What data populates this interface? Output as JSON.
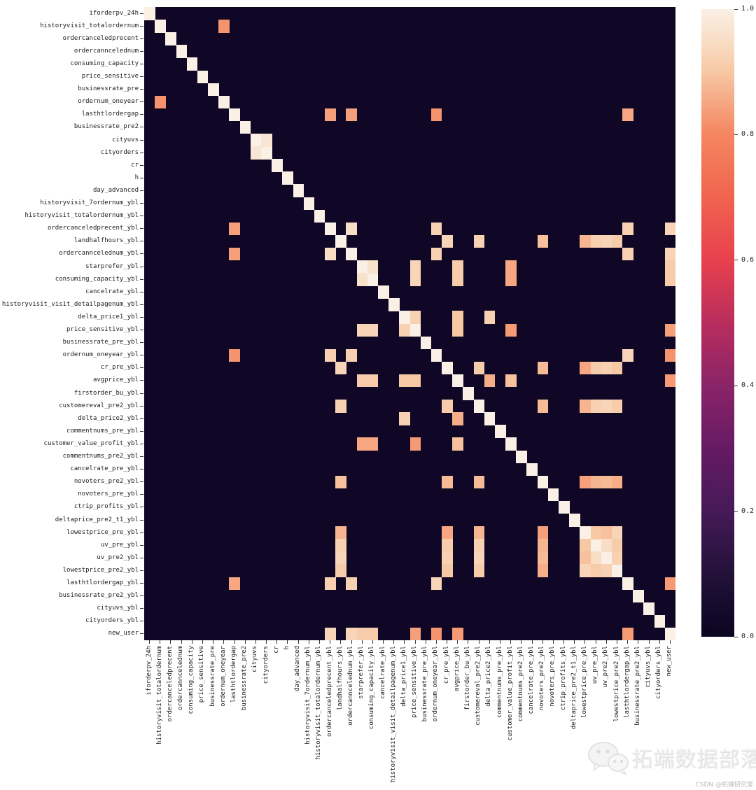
{
  "chart_data": {
    "type": "heatmap",
    "title": "",
    "variables": [
      "iforderpv_24h",
      "historyvisit_totalordernum",
      "ordercanceledprecent",
      "ordercanncelednum",
      "consuming_capacity",
      "price_sensitive",
      "businessrate_pre",
      "ordernum_oneyear",
      "lasthtlordergap",
      "businessrate_pre2",
      "cityuvs",
      "cityorders",
      "cr",
      "h",
      "day_advanced",
      "historyvisit_7ordernum_ybl",
      "historyvisit_totalordernum_ybl",
      "ordercanceledprecent_ybl",
      "landhalfhours_ybl",
      "ordercanncelednum_ybl",
      "starprefer_ybl",
      "consuming_capacity_ybl",
      "cancelrate_ybl",
      "historyvisit_visit_detailpagenum_ybl",
      "delta_price1_ybl",
      "price_sensitive_ybl",
      "businessrate_pre_ybl",
      "ordernum_oneyear_ybl",
      "cr_pre_ybl",
      "avgprice_ybl",
      "firstorder_bu_ybl",
      "customereval_pre2_ybl",
      "delta_price2_ybl",
      "commentnums_pre_ybl",
      "customer_value_profit_ybl",
      "commentnums_pre2_ybl",
      "cancelrate_pre_ybl",
      "novoters_pre2_ybl",
      "novoters_pre_ybl",
      "ctrip_profits_ybl",
      "deltaprice_pre2_t1_ybl",
      "lowestprice_pre_ybl",
      "uv_pre_ybl",
      "uv_pre2_ybl",
      "lowestprice_pre2_ybl",
      "lasthtlordergap_ybl",
      "businessrate_pre2_ybl",
      "cityuvs_ybl",
      "cityorders_ybl",
      "new_user"
    ],
    "vmin": 0.0,
    "vmax": 1.0,
    "diagonal_value": 1.0,
    "background_value": 0.02,
    "high_cells": [
      [
        2,
        8,
        0.82
      ],
      [
        9,
        18,
        0.84
      ],
      [
        9,
        20,
        0.84
      ],
      [
        9,
        28,
        0.82
      ],
      [
        9,
        46,
        0.85
      ],
      [
        11,
        12,
        0.97
      ],
      [
        18,
        20,
        0.95
      ],
      [
        18,
        28,
        0.92
      ],
      [
        18,
        46,
        0.92
      ],
      [
        18,
        50,
        0.93
      ],
      [
        20,
        28,
        0.92
      ],
      [
        20,
        46,
        0.92
      ],
      [
        20,
        50,
        0.93
      ],
      [
        28,
        46,
        0.93
      ],
      [
        28,
        50,
        0.82
      ],
      [
        46,
        50,
        0.83
      ],
      [
        21,
        22,
        0.96
      ],
      [
        21,
        26,
        0.93
      ],
      [
        22,
        26,
        0.93
      ],
      [
        21,
        30,
        0.91
      ],
      [
        22,
        30,
        0.91
      ],
      [
        21,
        35,
        0.85
      ],
      [
        22,
        35,
        0.85
      ],
      [
        21,
        50,
        0.91
      ],
      [
        22,
        50,
        0.91
      ],
      [
        25,
        26,
        0.92
      ],
      [
        25,
        30,
        0.9
      ],
      [
        25,
        33,
        0.92
      ],
      [
        26,
        30,
        0.9
      ],
      [
        26,
        35,
        0.83
      ],
      [
        26,
        50,
        0.84
      ],
      [
        30,
        33,
        0.86
      ],
      [
        30,
        35,
        0.89
      ],
      [
        30,
        50,
        0.83
      ],
      [
        19,
        29,
        0.93
      ],
      [
        19,
        32,
        0.92
      ],
      [
        19,
        38,
        0.89
      ],
      [
        29,
        32,
        0.91
      ],
      [
        29,
        38,
        0.88
      ],
      [
        32,
        38,
        0.88
      ],
      [
        19,
        42,
        0.87
      ],
      [
        19,
        43,
        0.92
      ],
      [
        19,
        44,
        0.93
      ],
      [
        19,
        45,
        0.91
      ],
      [
        29,
        42,
        0.85
      ],
      [
        29,
        43,
        0.91
      ],
      [
        29,
        44,
        0.92
      ],
      [
        29,
        45,
        0.9
      ],
      [
        32,
        42,
        0.87
      ],
      [
        32,
        43,
        0.92
      ],
      [
        32,
        44,
        0.93
      ],
      [
        32,
        45,
        0.91
      ],
      [
        38,
        42,
        0.84
      ],
      [
        38,
        43,
        0.87
      ],
      [
        38,
        44,
        0.88
      ],
      [
        38,
        45,
        0.86
      ],
      [
        42,
        43,
        0.9
      ],
      [
        42,
        44,
        0.89
      ],
      [
        42,
        45,
        0.93
      ],
      [
        43,
        44,
        0.95
      ],
      [
        43,
        45,
        0.91
      ],
      [
        44,
        45,
        0.92
      ]
    ],
    "colormap": {
      "name": "rocket",
      "stops": [
        [
          0.0,
          "#0A0520"
        ],
        [
          0.1,
          "#231139"
        ],
        [
          0.2,
          "#451A57"
        ],
        [
          0.3,
          "#661A64"
        ],
        [
          0.4,
          "#8A2468"
        ],
        [
          0.5,
          "#B92D5D"
        ],
        [
          0.6,
          "#E8414E"
        ],
        [
          0.7,
          "#F0634E"
        ],
        [
          0.8,
          "#F48660"
        ],
        [
          0.9,
          "#F7C8A4"
        ],
        [
          0.95,
          "#F9DEC6"
        ],
        [
          1.0,
          "#FAF0E6"
        ]
      ]
    },
    "colorbar_ticks": [
      {
        "label": "1.0",
        "value": 1.0
      },
      {
        "label": "0.8",
        "value": 0.8
      },
      {
        "label": "0.6",
        "value": 0.6
      },
      {
        "label": "0.4",
        "value": 0.4
      },
      {
        "label": "0.2",
        "value": 0.2
      },
      {
        "label": "0.0",
        "value": 0.0
      }
    ],
    "legend_position": "right-colorbar",
    "grid": false
  },
  "watermark": {
    "text": "拓端数据部落"
  },
  "credit": {
    "text": "CSDN @拓端研究室"
  }
}
